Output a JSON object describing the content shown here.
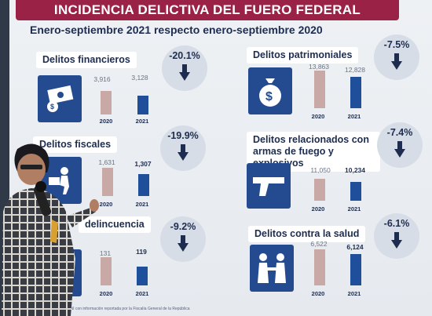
{
  "title": "INCIDENCIA DELICTIVA DEL FUERO FEDERAL",
  "subtitle": "Enero-septiembre 2021 respecto enero-septiembre 2020",
  "colors": {
    "title_bg": "#9b2247",
    "tile_bg": "#244a8f",
    "bar_2020": "#c8a9a6",
    "bar_2021": "#1f4e9a"
  },
  "panels": [
    {
      "label": "Delitos financieros",
      "pct": "-20.1%",
      "icon": "money-icon",
      "v2020": "3,916",
      "v2021": "3,128",
      "n2020": 3916,
      "n2021": 3128,
      "y2020": "2020",
      "y2021": "2021"
    },
    {
      "label": "Delitos patrimoniales",
      "pct": "-7.5%",
      "icon": "money-bag-icon",
      "v2020": "13,863",
      "v2021": "12,828",
      "n2020": 13863,
      "n2021": 12828,
      "y2020": "2020",
      "y2021": "2021"
    },
    {
      "label": "Delitos fiscales",
      "pct": "-19.9%",
      "icon": "sat-icon",
      "v2020": "1,631",
      "v2021": "1,307",
      "n2020": 1631,
      "n2021": 1307,
      "y2020": "2020",
      "y2021": "2021"
    },
    {
      "label": "Delitos relacionados con armas de fuego y explosivos",
      "pct": "-7.4%",
      "icon": "pistol-icon",
      "v2020": "11,050",
      "v2021": "10,234",
      "n2020": 11050,
      "n2021": 10234,
      "y2020": "2020",
      "y2021": "2021"
    },
    {
      "label": "delincuencia",
      "pct": "-9.2%",
      "icon": "person-icon",
      "v2020": "131",
      "v2021": "119",
      "n2020": 131,
      "n2021": 119,
      "y2020": "2020",
      "y2021": "2021"
    },
    {
      "label": "Delitos contra la salud",
      "pct": "-6.1%",
      "icon": "handshake-icon",
      "v2020": "6,522",
      "v2021": "6,124",
      "n2020": 6522,
      "n2021": 6124,
      "y2020": "2020",
      "y2021": "2021"
    }
  ],
  "footnote": "SESNSP-CNI con información reportada por la Fiscalía General de la República"
}
